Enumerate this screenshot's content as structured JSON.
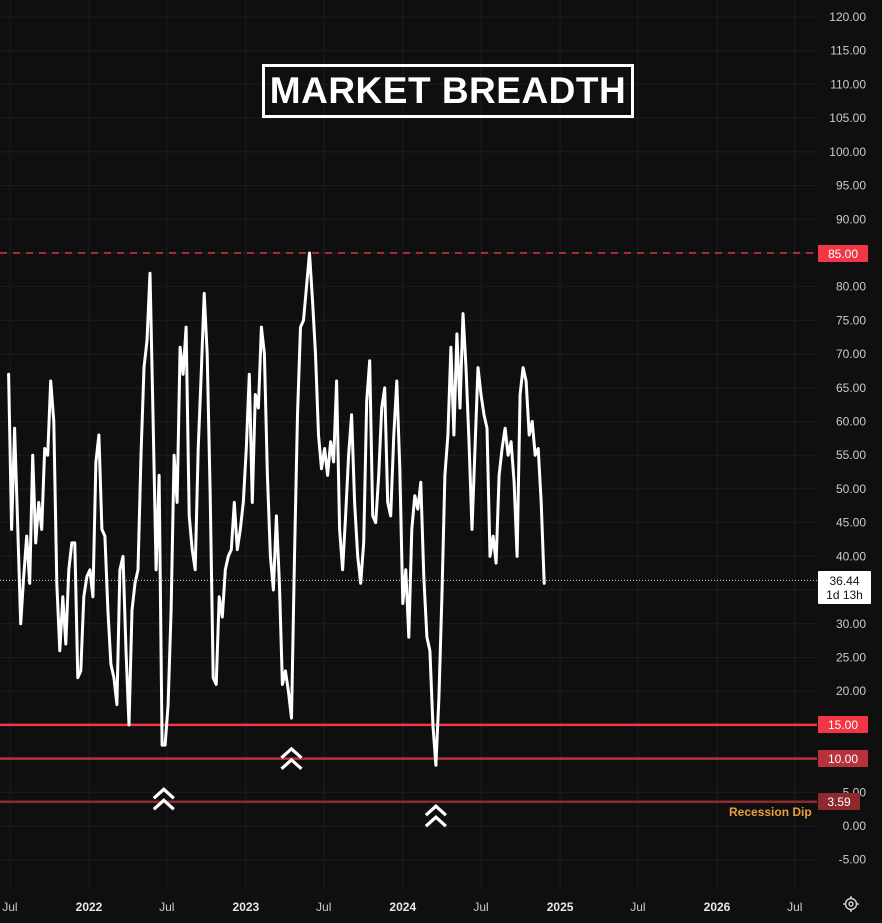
{
  "title": "MARKET BREADTH",
  "price_label": {
    "value": "36.44",
    "countdown": "1d 13h"
  },
  "levels": [
    {
      "value": 85,
      "label": "85.00",
      "style": "dashed",
      "color": "#f23645"
    },
    {
      "value": 15,
      "label": "15.00",
      "style": "solid",
      "color": "#f23645"
    },
    {
      "value": 10,
      "label": "10.00",
      "style": "solid",
      "color": "#b8323b"
    },
    {
      "value": 3.59,
      "label": "3.59",
      "style": "solid",
      "color": "#8e2a2f",
      "annotation": "Recession Dip"
    }
  ],
  "icons": {
    "settings": "gear-icon",
    "signal": "double-chevron-up-icon"
  },
  "colors": {
    "background": "#0f0f10",
    "line": "#ffffff",
    "accent_red": "#f23645",
    "annotation": "#e9a23b"
  },
  "chart_data": {
    "type": "line",
    "title": "MARKET BREADTH",
    "xlabel": "",
    "ylabel": "",
    "ylim": [
      -5,
      120
    ],
    "y_ticks": [
      "120.00",
      "115.00",
      "110.00",
      "105.00",
      "100.00",
      "95.00",
      "90.00",
      "85.00",
      "80.00",
      "75.00",
      "70.00",
      "65.00",
      "60.00",
      "55.00",
      "50.00",
      "45.00",
      "40.00",
      "35.00",
      "30.00",
      "25.00",
      "20.00",
      "15.00",
      "10.00",
      "5.00",
      "0.00",
      "-5.00"
    ],
    "x_ticks": [
      {
        "label": "Jul",
        "date": "2021-07-01",
        "year": false
      },
      {
        "label": "2022",
        "date": "2022-01-01",
        "year": true
      },
      {
        "label": "Jul",
        "date": "2022-07-01",
        "year": false
      },
      {
        "label": "2023",
        "date": "2023-01-01",
        "year": true
      },
      {
        "label": "Jul",
        "date": "2023-07-01",
        "year": false
      },
      {
        "label": "2024",
        "date": "2024-01-01",
        "year": true
      },
      {
        "label": "Jul",
        "date": "2024-07-01",
        "year": false
      },
      {
        "label": "2025",
        "date": "2025-01-01",
        "year": true
      },
      {
        "label": "Jul",
        "date": "2025-07-01",
        "year": false
      },
      {
        "label": "2026",
        "date": "2026-01-01",
        "year": true
      },
      {
        "label": "Jul",
        "date": "2026-07-01",
        "year": false
      }
    ],
    "grid": true,
    "series": [
      {
        "points": [
          [
            "2021-06-28",
            67
          ],
          [
            "2021-07-05",
            44
          ],
          [
            "2021-07-12",
            59
          ],
          [
            "2021-07-19",
            45
          ],
          [
            "2021-07-26",
            30
          ],
          [
            "2021-08-02",
            37
          ],
          [
            "2021-08-09",
            43
          ],
          [
            "2021-08-16",
            36
          ],
          [
            "2021-08-23",
            55
          ],
          [
            "2021-08-30",
            42
          ],
          [
            "2021-09-06",
            48
          ],
          [
            "2021-09-13",
            44
          ],
          [
            "2021-09-20",
            56
          ],
          [
            "2021-09-27",
            55
          ],
          [
            "2021-10-04",
            66
          ],
          [
            "2021-10-11",
            60
          ],
          [
            "2021-10-18",
            36
          ],
          [
            "2021-10-25",
            26
          ],
          [
            "2021-11-01",
            34
          ],
          [
            "2021-11-08",
            27
          ],
          [
            "2021-11-15",
            38
          ],
          [
            "2021-11-22",
            42
          ],
          [
            "2021-11-29",
            42
          ],
          [
            "2021-12-06",
            22
          ],
          [
            "2021-12-13",
            23
          ],
          [
            "2021-12-20",
            34
          ],
          [
            "2021-12-27",
            37
          ],
          [
            "2022-01-03",
            38
          ],
          [
            "2022-01-10",
            34
          ],
          [
            "2022-01-17",
            54
          ],
          [
            "2022-01-24",
            58
          ],
          [
            "2022-01-31",
            44
          ],
          [
            "2022-02-07",
            43
          ],
          [
            "2022-02-14",
            32
          ],
          [
            "2022-02-21",
            24
          ],
          [
            "2022-02-28",
            22
          ],
          [
            "2022-03-07",
            18
          ],
          [
            "2022-03-14",
            38
          ],
          [
            "2022-03-21",
            40
          ],
          [
            "2022-03-28",
            26
          ],
          [
            "2022-04-04",
            15
          ],
          [
            "2022-04-11",
            32
          ],
          [
            "2022-04-18",
            36
          ],
          [
            "2022-04-25",
            38
          ],
          [
            "2022-05-02",
            55
          ],
          [
            "2022-05-09",
            68
          ],
          [
            "2022-05-16",
            72
          ],
          [
            "2022-05-23",
            82
          ],
          [
            "2022-05-30",
            61
          ],
          [
            "2022-06-06",
            38
          ],
          [
            "2022-06-13",
            52
          ],
          [
            "2022-06-20",
            12
          ],
          [
            "2022-06-27",
            12
          ],
          [
            "2022-07-04",
            18
          ],
          [
            "2022-07-11",
            32
          ],
          [
            "2022-07-18",
            55
          ],
          [
            "2022-07-25",
            48
          ],
          [
            "2022-08-01",
            71
          ],
          [
            "2022-08-08",
            67
          ],
          [
            "2022-08-15",
            74
          ],
          [
            "2022-08-22",
            46
          ],
          [
            "2022-08-29",
            41
          ],
          [
            "2022-09-05",
            38
          ],
          [
            "2022-09-12",
            56
          ],
          [
            "2022-09-19",
            67
          ],
          [
            "2022-09-26",
            79
          ],
          [
            "2022-10-03",
            70
          ],
          [
            "2022-10-10",
            49
          ],
          [
            "2022-10-17",
            22
          ],
          [
            "2022-10-24",
            21
          ],
          [
            "2022-10-31",
            34
          ],
          [
            "2022-11-07",
            31
          ],
          [
            "2022-11-14",
            38
          ],
          [
            "2022-11-21",
            40
          ],
          [
            "2022-11-28",
            41
          ],
          [
            "2022-12-05",
            48
          ],
          [
            "2022-12-12",
            41
          ],
          [
            "2022-12-19",
            44
          ],
          [
            "2022-12-26",
            48
          ],
          [
            "2023-01-02",
            56
          ],
          [
            "2023-01-09",
            67
          ],
          [
            "2023-01-16",
            48
          ],
          [
            "2023-01-23",
            64
          ],
          [
            "2023-01-30",
            62
          ],
          [
            "2023-02-06",
            74
          ],
          [
            "2023-02-13",
            70
          ],
          [
            "2023-02-20",
            52
          ],
          [
            "2023-02-27",
            40
          ],
          [
            "2023-03-06",
            35
          ],
          [
            "2023-03-13",
            46
          ],
          [
            "2023-03-20",
            36
          ],
          [
            "2023-03-27",
            21
          ],
          [
            "2023-04-03",
            23
          ],
          [
            "2023-04-10",
            20
          ],
          [
            "2023-04-17",
            16
          ],
          [
            "2023-04-24",
            40
          ],
          [
            "2023-05-01",
            61
          ],
          [
            "2023-05-08",
            74
          ],
          [
            "2023-05-15",
            75
          ],
          [
            "2023-05-22",
            80
          ],
          [
            "2023-05-29",
            85
          ],
          [
            "2023-06-05",
            78
          ],
          [
            "2023-06-12",
            70
          ],
          [
            "2023-06-19",
            58
          ],
          [
            "2023-06-26",
            53
          ],
          [
            "2023-07-03",
            56
          ],
          [
            "2023-07-10",
            52
          ],
          [
            "2023-07-17",
            57
          ],
          [
            "2023-07-24",
            54
          ],
          [
            "2023-07-31",
            66
          ],
          [
            "2023-08-07",
            44
          ],
          [
            "2023-08-14",
            38
          ],
          [
            "2023-08-21",
            46
          ],
          [
            "2023-08-28",
            55
          ],
          [
            "2023-09-04",
            61
          ],
          [
            "2023-09-11",
            48
          ],
          [
            "2023-09-18",
            40
          ],
          [
            "2023-09-25",
            36
          ],
          [
            "2023-10-02",
            42
          ],
          [
            "2023-10-09",
            63
          ],
          [
            "2023-10-16",
            69
          ],
          [
            "2023-10-23",
            46
          ],
          [
            "2023-10-30",
            45
          ],
          [
            "2023-11-06",
            52
          ],
          [
            "2023-11-13",
            62
          ],
          [
            "2023-11-20",
            65
          ],
          [
            "2023-11-27",
            48
          ],
          [
            "2023-12-04",
            46
          ],
          [
            "2023-12-11",
            58
          ],
          [
            "2023-12-18",
            66
          ],
          [
            "2023-12-25",
            53
          ],
          [
            "2024-01-01",
            33
          ],
          [
            "2024-01-08",
            38
          ],
          [
            "2024-01-15",
            28
          ],
          [
            "2024-01-22",
            44
          ],
          [
            "2024-01-29",
            49
          ],
          [
            "2024-02-05",
            47
          ],
          [
            "2024-02-12",
            51
          ],
          [
            "2024-02-19",
            37
          ],
          [
            "2024-02-26",
            28
          ],
          [
            "2024-03-04",
            26
          ],
          [
            "2024-03-11",
            15
          ],
          [
            "2024-03-18",
            9
          ],
          [
            "2024-03-25",
            19
          ],
          [
            "2024-04-01",
            34
          ],
          [
            "2024-04-08",
            52
          ],
          [
            "2024-04-15",
            58
          ],
          [
            "2024-04-22",
            71
          ],
          [
            "2024-04-29",
            58
          ],
          [
            "2024-05-06",
            73
          ],
          [
            "2024-05-13",
            62
          ],
          [
            "2024-05-20",
            76
          ],
          [
            "2024-05-27",
            68
          ],
          [
            "2024-06-03",
            57
          ],
          [
            "2024-06-10",
            44
          ],
          [
            "2024-06-17",
            56
          ],
          [
            "2024-06-24",
            68
          ],
          [
            "2024-07-01",
            64
          ],
          [
            "2024-07-08",
            61
          ],
          [
            "2024-07-15",
            59
          ],
          [
            "2024-07-22",
            40
          ],
          [
            "2024-07-29",
            43
          ],
          [
            "2024-08-05",
            39
          ],
          [
            "2024-08-12",
            52
          ],
          [
            "2024-08-19",
            56
          ],
          [
            "2024-08-26",
            59
          ],
          [
            "2024-09-02",
            55
          ],
          [
            "2024-09-09",
            57
          ],
          [
            "2024-09-16",
            51
          ],
          [
            "2024-09-23",
            40
          ],
          [
            "2024-09-30",
            64
          ],
          [
            "2024-10-07",
            68
          ],
          [
            "2024-10-14",
            66
          ],
          [
            "2024-10-21",
            58
          ],
          [
            "2024-10-28",
            60
          ],
          [
            "2024-11-04",
            55
          ],
          [
            "2024-11-11",
            56
          ],
          [
            "2024-11-18",
            48
          ],
          [
            "2024-11-25",
            36
          ]
        ]
      }
    ],
    "annotations": [
      {
        "type": "signal-marker",
        "date": "2022-06-24",
        "value": 5
      },
      {
        "type": "signal-marker",
        "date": "2023-04-17",
        "value": 11
      },
      {
        "type": "signal-marker",
        "date": "2024-03-18",
        "value": 2.5
      }
    ],
    "current_value": 36.44
  }
}
